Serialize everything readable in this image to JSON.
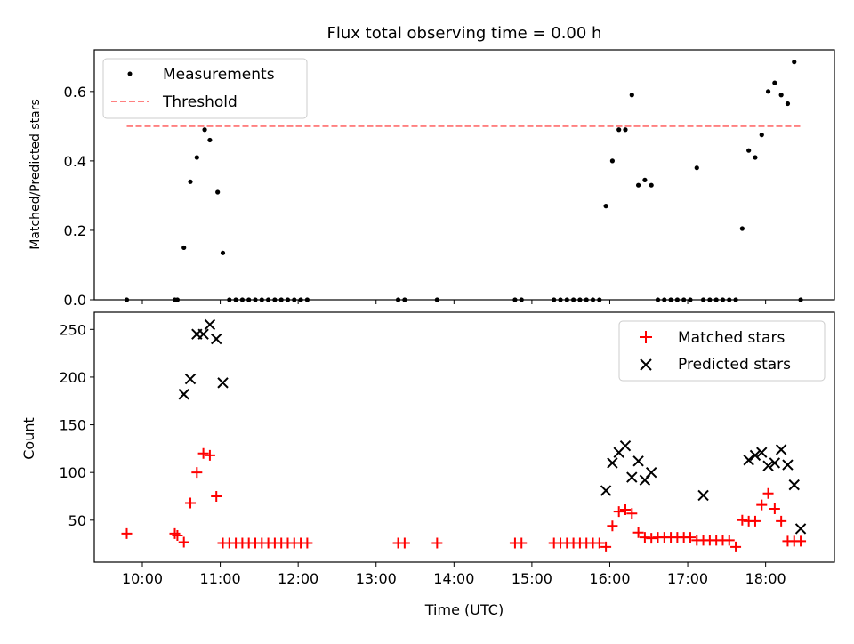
{
  "chart_data": [
    {
      "type": "scatter",
      "title": "Flux total observing time = 0.00 h",
      "ylabel": "Matched/Predicted stars",
      "xlabel": "",
      "ylim": [
        0,
        0.72
      ],
      "yticks": [
        "0.0",
        "0.2",
        "0.4",
        "0.6"
      ],
      "ytick_values": [
        0,
        0.2,
        0.4,
        0.6
      ],
      "legend": {
        "placement": "top-left",
        "entries": [
          "Measurements",
          "Threshold"
        ]
      },
      "threshold": {
        "name": "Threshold",
        "value": 0.5,
        "color": "#ff8080",
        "x_range": [
          "09:48",
          "18:27"
        ]
      },
      "series": [
        {
          "name": "Measurements",
          "color": "#000000",
          "x": [
            "09:48",
            "10:25",
            "10:27",
            "10:32",
            "10:37",
            "10:42",
            "10:48",
            "10:52",
            "10:58",
            "11:02",
            "11:07",
            "11:12",
            "11:17",
            "11:22",
            "11:27",
            "11:32",
            "11:37",
            "11:42",
            "11:47",
            "11:52",
            "11:57",
            "12:02",
            "12:07",
            "13:17",
            "13:22",
            "13:47",
            "14:47",
            "14:52",
            "15:17",
            "15:22",
            "15:27",
            "15:32",
            "15:37",
            "15:42",
            "15:47",
            "15:52",
            "15:57",
            "16:02",
            "16:07",
            "16:12",
            "16:17",
            "16:22",
            "16:27",
            "16:32",
            "16:37",
            "16:42",
            "16:47",
            "16:52",
            "16:57",
            "17:02",
            "17:07",
            "17:12",
            "17:17",
            "17:22",
            "17:27",
            "17:32",
            "17:37",
            "17:42",
            "17:47",
            "17:52",
            "17:57",
            "18:02",
            "18:07",
            "18:12",
            "18:17",
            "18:22",
            "18:27"
          ],
          "y": [
            0,
            0,
            0,
            0.15,
            0.34,
            0.41,
            0.49,
            0.46,
            0.31,
            0.135,
            0,
            0,
            0,
            0,
            0,
            0,
            0,
            0,
            0,
            0,
            0,
            0,
            0,
            0,
            0,
            0,
            0,
            0,
            0,
            0,
            0,
            0,
            0,
            0,
            0,
            0,
            0.27,
            0.4,
            0.49,
            0.49,
            0.59,
            0.33,
            0.345,
            0.33,
            0,
            0,
            0,
            0,
            0,
            0,
            0.38,
            0,
            0,
            0,
            0,
            0,
            0,
            0.205,
            0.43,
            0.41,
            0.475,
            0.6,
            0.625,
            0.59,
            0.565,
            0.685,
            0
          ]
        }
      ]
    },
    {
      "type": "scatter",
      "title": "",
      "xlabel": "Time (UTC)",
      "ylabel": "Count",
      "ylim": [
        6,
        268
      ],
      "yticks": [
        "50",
        "100",
        "150",
        "200",
        "250"
      ],
      "ytick_values": [
        50,
        100,
        150,
        200,
        250
      ],
      "xticks": [
        "10:00",
        "11:00",
        "12:00",
        "13:00",
        "14:00",
        "15:00",
        "16:00",
        "17:00",
        "18:00"
      ],
      "xrange": [
        "09:23",
        "18:53"
      ],
      "legend": {
        "placement": "top-right",
        "entries": [
          "Matched stars",
          "Predicted stars"
        ]
      },
      "series": [
        {
          "name": "Matched stars",
          "color": "#ff0000",
          "marker": "+",
          "x": [
            "09:48",
            "10:25",
            "10:27",
            "10:32",
            "10:37",
            "10:42",
            "10:47",
            "10:52",
            "10:57",
            "11:02",
            "11:07",
            "11:12",
            "11:17",
            "11:22",
            "11:27",
            "11:32",
            "11:37",
            "11:42",
            "11:47",
            "11:52",
            "11:57",
            "12:02",
            "12:07",
            "13:17",
            "13:22",
            "13:47",
            "14:47",
            "14:52",
            "15:17",
            "15:22",
            "15:27",
            "15:32",
            "15:37",
            "15:42",
            "15:47",
            "15:52",
            "15:57",
            "16:02",
            "16:07",
            "16:12",
            "16:17",
            "16:22",
            "16:27",
            "16:32",
            "16:37",
            "16:42",
            "16:47",
            "16:52",
            "16:57",
            "17:02",
            "17:07",
            "17:12",
            "17:17",
            "17:22",
            "17:27",
            "17:32",
            "17:37",
            "17:42",
            "17:47",
            "17:52",
            "17:57",
            "18:02",
            "18:07",
            "18:12",
            "18:17",
            "18:22",
            "18:27"
          ],
          "y": [
            36,
            36,
            34,
            27,
            68,
            100,
            120,
            118,
            75,
            26,
            26,
            26,
            26,
            26,
            26,
            26,
            26,
            26,
            26,
            26,
            26,
            26,
            26,
            26,
            26,
            26,
            26,
            26,
            26,
            26,
            26,
            26,
            26,
            26,
            26,
            26,
            22,
            44,
            59,
            61,
            57,
            37,
            32,
            31,
            32,
            32,
            32,
            32,
            32,
            32,
            29,
            29,
            29,
            29,
            29,
            29,
            22,
            50,
            49,
            49,
            66,
            78,
            62,
            49,
            28,
            28,
            28
          ]
        },
        {
          "name": "Predicted stars",
          "color": "#000000",
          "marker": "x",
          "x": [
            "10:32",
            "10:37",
            "10:42",
            "10:47",
            "10:52",
            "10:57",
            "11:02",
            "15:57",
            "16:02",
            "16:07",
            "16:12",
            "16:17",
            "16:22",
            "16:27",
            "16:32",
            "17:12",
            "17:47",
            "17:52",
            "17:57",
            "18:02",
            "18:07",
            "18:12",
            "18:17",
            "18:22",
            "18:27"
          ],
          "y": [
            182,
            198,
            245,
            245,
            255,
            240,
            194,
            81,
            110,
            121,
            128,
            95,
            112,
            92,
            100,
            76,
            113,
            118,
            121,
            107,
            110,
            124,
            108,
            87,
            41
          ]
        }
      ]
    }
  ]
}
